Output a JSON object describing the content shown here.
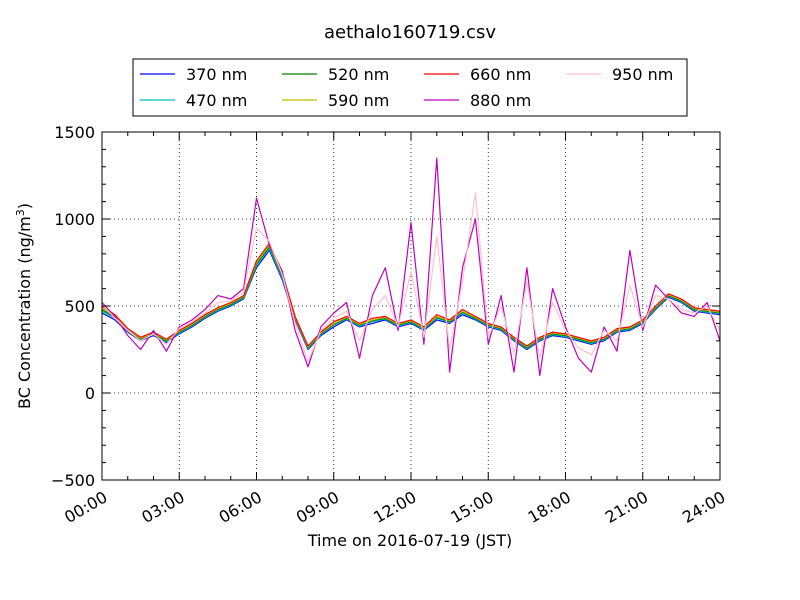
{
  "chart_data": {
    "type": "line",
    "title": "aethalo160719.csv",
    "xlabel": "Time on 2016-07-19 (JST)",
    "ylabel": "BC Concentration (ng/m",
    "ylabel_sup": "3",
    "ylabel_end": ")",
    "ylim": [
      -500,
      1500
    ],
    "xlim": [
      "00:00",
      "24:00"
    ],
    "x_ticks": [
      "00:00",
      "03:00",
      "06:00",
      "09:00",
      "12:00",
      "15:00",
      "18:00",
      "21:00",
      "24:00"
    ],
    "y_ticks": [
      "−500",
      "0",
      "500",
      "1000",
      "1500"
    ],
    "grid": true,
    "legend_position": "top",
    "x_hours": [
      0,
      0.5,
      1,
      1.5,
      2,
      2.5,
      3,
      3.5,
      4,
      4.5,
      5,
      5.5,
      6,
      6.5,
      7,
      7.5,
      8,
      8.5,
      9,
      9.5,
      10,
      10.5,
      11,
      11.5,
      12,
      12.5,
      13,
      13.5,
      14,
      14.5,
      15,
      15.5,
      16,
      16.5,
      17,
      17.5,
      18,
      18.5,
      19,
      19.5,
      20,
      20.5,
      21,
      21.5,
      22,
      22.5,
      23,
      23.5,
      24
    ],
    "series": [
      {
        "name": "370 nm",
        "color": "#0000ff",
        "values": [
          460,
          420,
          350,
          300,
          330,
          290,
          340,
          380,
          430,
          470,
          500,
          540,
          720,
          820,
          650,
          420,
          250,
          330,
          380,
          420,
          380,
          400,
          420,
          380,
          400,
          360,
          420,
          400,
          450,
          420,
          380,
          360,
          300,
          250,
          300,
          330,
          320,
          300,
          280,
          300,
          350,
          360,
          400,
          480,
          550,
          520,
          470,
          460,
          450
        ]
      },
      {
        "name": "470 nm",
        "color": "#00bfbf",
        "values": [
          470,
          430,
          355,
          305,
          335,
          295,
          345,
          385,
          435,
          475,
          505,
          545,
          730,
          830,
          660,
          425,
          255,
          335,
          390,
          425,
          385,
          410,
          425,
          385,
          405,
          365,
          430,
          405,
          460,
          425,
          385,
          365,
          305,
          255,
          305,
          335,
          325,
          305,
          285,
          305,
          355,
          365,
          405,
          485,
          555,
          525,
          475,
          465,
          455
        ]
      },
      {
        "name": "520 nm",
        "color": "#008000",
        "values": [
          480,
          435,
          360,
          310,
          340,
          300,
          350,
          390,
          440,
          480,
          510,
          550,
          740,
          840,
          670,
          430,
          260,
          340,
          395,
          430,
          390,
          415,
          430,
          390,
          410,
          370,
          435,
          410,
          465,
          430,
          390,
          370,
          310,
          260,
          310,
          340,
          330,
          310,
          290,
          310,
          360,
          370,
          410,
          490,
          560,
          530,
          480,
          470,
          460
        ]
      },
      {
        "name": "590 nm",
        "color": "#bfbf00",
        "values": [
          490,
          440,
          365,
          315,
          345,
          305,
          355,
          395,
          445,
          485,
          515,
          555,
          750,
          850,
          680,
          435,
          265,
          345,
          400,
          435,
          395,
          420,
          435,
          395,
          415,
          375,
          440,
          415,
          470,
          435,
          395,
          375,
          315,
          265,
          315,
          345,
          335,
          315,
          295,
          315,
          365,
          375,
          415,
          495,
          565,
          535,
          485,
          475,
          465
        ]
      },
      {
        "name": "660 nm",
        "color": "#ff0000",
        "values": [
          500,
          450,
          370,
          320,
          350,
          310,
          360,
          400,
          450,
          490,
          520,
          560,
          760,
          860,
          690,
          440,
          270,
          350,
          410,
          440,
          400,
          430,
          440,
          400,
          420,
          380,
          450,
          420,
          480,
          440,
          400,
          380,
          320,
          270,
          320,
          350,
          340,
          320,
          300,
          320,
          370,
          380,
          420,
          500,
          570,
          540,
          490,
          480,
          470
        ]
      },
      {
        "name": "880 nm",
        "color": "#bf00bf",
        "values": [
          520,
          440,
          330,
          250,
          360,
          240,
          380,
          420,
          480,
          560,
          540,
          600,
          1120,
          850,
          700,
          360,
          150,
          380,
          460,
          520,
          200,
          560,
          720,
          360,
          980,
          280,
          1350,
          120,
          720,
          1000,
          280,
          560,
          120,
          720,
          100,
          600,
          380,
          200,
          120,
          380,
          240,
          820,
          360,
          620,
          540,
          460,
          440,
          520,
          300
        ]
      },
      {
        "name": "950 nm",
        "color": "#ffc0cb",
        "values": [
          510,
          430,
          360,
          300,
          340,
          280,
          370,
          410,
          460,
          520,
          530,
          580,
          950,
          870,
          680,
          400,
          180,
          360,
          430,
          470,
          300,
          480,
          560,
          380,
          700,
          320,
          900,
          250,
          640,
          1150,
          320,
          500,
          230,
          640,
          200,
          520,
          360,
          260,
          220,
          360,
          300,
          620,
          380,
          560,
          540,
          480,
          460,
          500,
          360
        ]
      }
    ]
  }
}
